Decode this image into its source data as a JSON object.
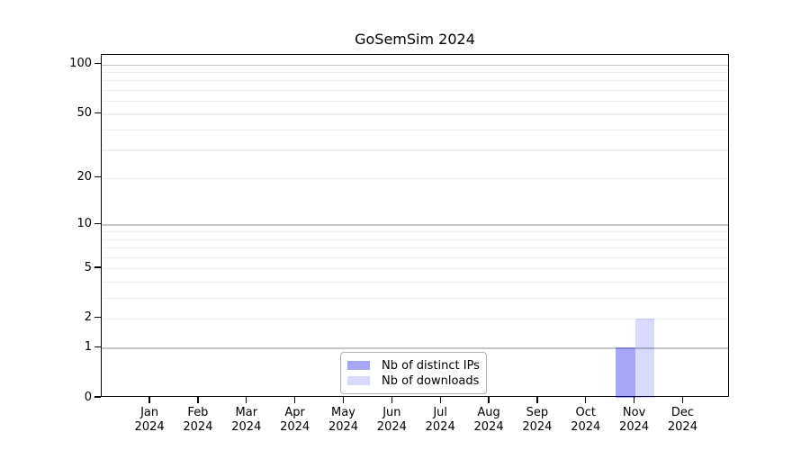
{
  "chart_data": {
    "type": "bar",
    "title": "GoSemSim 2024",
    "categories": [
      "Jan",
      "Feb",
      "Mar",
      "Apr",
      "May",
      "Jun",
      "Jul",
      "Aug",
      "Sep",
      "Oct",
      "Nov",
      "Dec"
    ],
    "category_year": "2024",
    "series": [
      {
        "name": "Nb of distinct IPs",
        "color": "#0000e6",
        "alpha": 0.35,
        "values": [
          0,
          0,
          0,
          0,
          0,
          0,
          0,
          0,
          0,
          0,
          1,
          0
        ]
      },
      {
        "name": "Nb of downloads",
        "color": "#0000e6",
        "alpha": 0.15,
        "values": [
          0,
          0,
          0,
          0,
          0,
          0,
          0,
          0,
          0,
          0,
          2,
          0
        ]
      }
    ],
    "xlabel": "",
    "ylabel": "",
    "y_axis": {
      "scale": "log1p",
      "ylim": [
        0,
        114
      ],
      "ticks": [
        0,
        1,
        2,
        5,
        10,
        20,
        50,
        100
      ],
      "tick_labels": [
        "0",
        "1",
        "2",
        "5",
        "10",
        "20",
        "50",
        "100"
      ]
    },
    "grid": {
      "enabled": true,
      "major_values": [
        1,
        10,
        100
      ],
      "minor_values": [
        2,
        3,
        4,
        5,
        6,
        7,
        8,
        9,
        20,
        30,
        40,
        50,
        60,
        70,
        80,
        90
      ]
    },
    "legend": {
      "position": "lower center",
      "border_color": "#b3b3b3"
    },
    "colors": {
      "grid_major": "#c6c6c6",
      "grid_minor": "#ededed",
      "spine": "#000000",
      "text": "#000000",
      "background": "#ffffff"
    }
  }
}
